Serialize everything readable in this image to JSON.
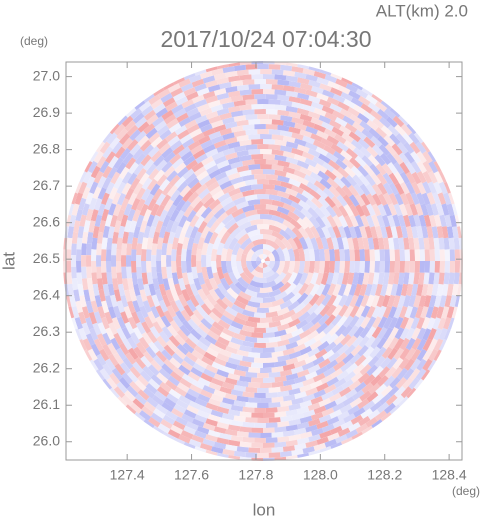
{
  "chart_data": {
    "type": "radar-field",
    "title": "2017/10/24 07:04:30",
    "altitude_label": "ALT(km) 2.0",
    "y_unit": "(deg)",
    "x_unit": "(deg)",
    "ylabel": "lat",
    "xlabel": "lon",
    "xlim": [
      127.21,
      128.44
    ],
    "ylim": [
      25.95,
      27.04
    ],
    "xticks": [
      127.4,
      127.6,
      127.8,
      {
        "value": 128,
        "label": "128.0"
      },
      128.2,
      128.4
    ],
    "yticks": [
      {
        "value": 26,
        "label": "26.0"
      },
      26.1,
      26.2,
      26.3,
      26.4,
      26.5,
      26.6,
      26.7,
      26.8,
      26.9,
      {
        "value": 27,
        "label": "27.0"
      }
    ],
    "colors": [
      "#f4a6a8",
      "#b4b6f4"
    ]
  }
}
